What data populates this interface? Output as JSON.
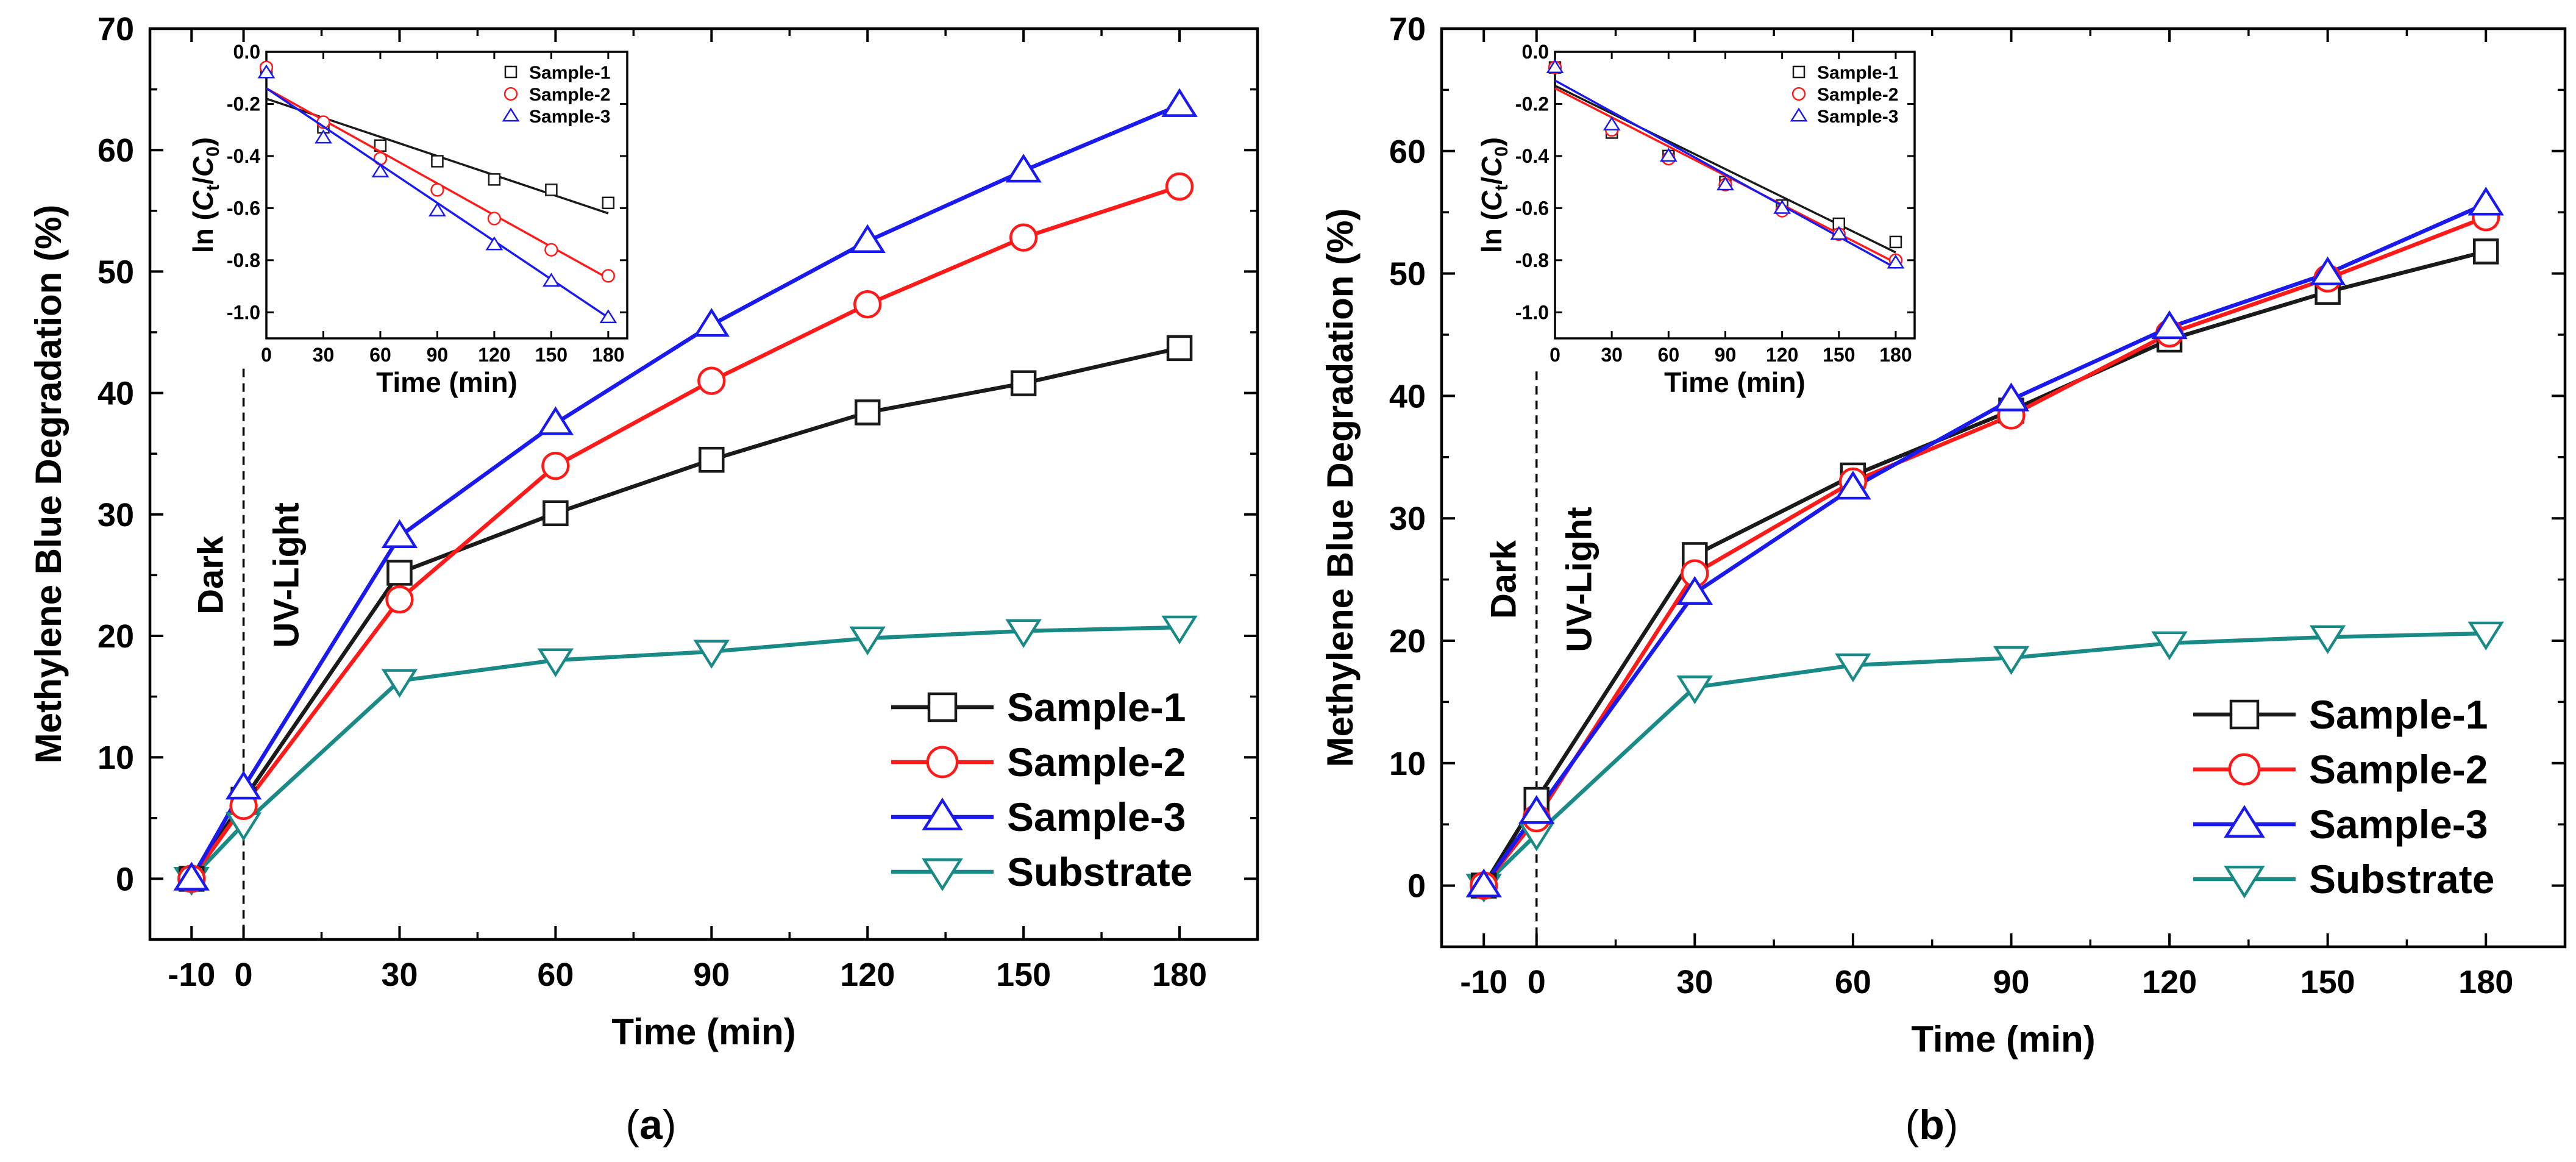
{
  "figure": {
    "captions": [
      "a",
      "b"
    ],
    "colors": {
      "sample1": "#1a1a1a",
      "sample2": "#ff1a1a",
      "sample3": "#1a1aee",
      "substrate": "#1a8a86",
      "axis": "#000000"
    },
    "markers": {
      "sample1": "square",
      "sample2": "circle",
      "sample3": "triangle-up",
      "substrate": "triangle-down"
    }
  },
  "chart_data": [
    {
      "panel": "a",
      "type": "line",
      "xlabel": "Time (min)",
      "ylabel": "Methylene Blue Degradation (%)",
      "xlim": [
        -18,
        195
      ],
      "ylim": [
        -5,
        70
      ],
      "xticks": [
        -10,
        0,
        30,
        60,
        90,
        120,
        150,
        180
      ],
      "xtick_labels": [
        "-10",
        "0",
        "30",
        "60",
        "90",
        "120",
        "150",
        "180"
      ],
      "yticks": [
        0,
        10,
        20,
        30,
        40,
        50,
        60,
        70
      ],
      "ytick_labels": [
        "0",
        "10",
        "20",
        "30",
        "40",
        "50",
        "60",
        "70"
      ],
      "x": [
        -10,
        0,
        30,
        60,
        90,
        120,
        150,
        180
      ],
      "series": [
        {
          "key": "sample1",
          "name": "Sample-1",
          "values": [
            0,
            6.5,
            25.2,
            30.1,
            34.5,
            38.4,
            40.8,
            43.7
          ]
        },
        {
          "key": "sample2",
          "name": "Sample-2",
          "values": [
            0,
            6.0,
            23.0,
            34.0,
            41.0,
            47.3,
            52.8,
            57.0
          ]
        },
        {
          "key": "sample3",
          "name": "Sample-3",
          "values": [
            0,
            7.5,
            28.2,
            37.5,
            45.6,
            52.5,
            58.3,
            63.7
          ]
        },
        {
          "key": "substrate",
          "name": "Substrate",
          "values": [
            0,
            4.5,
            16.3,
            18.0,
            18.7,
            19.8,
            20.4,
            20.7
          ]
        }
      ],
      "annotations": {
        "dark": "Dark",
        "light": "UV-Light",
        "divider_x": 0
      },
      "legend": "bottom-right",
      "inset": {
        "xlabel": "Time (min)",
        "ylabel_prefix": "ln (",
        "ylabel_c": "C",
        "ylabel_t": "t",
        "ylabel_slash": "/",
        "ylabel_0": "0",
        "ylabel_suffix": ")",
        "xlim": [
          0,
          190
        ],
        "ylim": [
          -1.1,
          0.0
        ],
        "xticks": [
          0,
          30,
          60,
          90,
          120,
          150,
          180
        ],
        "xtick_labels": [
          "0",
          "30",
          "60",
          "90",
          "120",
          "150",
          "180"
        ],
        "yticks": [
          0.0,
          -0.2,
          -0.4,
          -0.6,
          -0.8,
          -1.0
        ],
        "ytick_labels": [
          "0.0",
          "-0.2",
          "-0.4",
          "-0.6",
          "-0.8",
          "-1.0"
        ],
        "x": [
          0,
          30,
          60,
          90,
          120,
          150,
          180
        ],
        "legend": "top-right",
        "series": [
          {
            "key": "sample1",
            "name": "Sample-1",
            "values": [
              -0.07,
              -0.29,
              -0.36,
              -0.42,
              -0.49,
              -0.53,
              -0.58
            ],
            "fit": [
              -0.18,
              -0.62
            ]
          },
          {
            "key": "sample2",
            "name": "Sample-2",
            "values": [
              -0.06,
              -0.27,
              -0.41,
              -0.53,
              -0.64,
              -0.76,
              -0.86
            ],
            "fit": [
              -0.14,
              -0.87
            ]
          },
          {
            "key": "sample3",
            "name": "Sample-3",
            "values": [
              -0.08,
              -0.33,
              -0.46,
              -0.61,
              -0.74,
              -0.88,
              -1.02
            ],
            "fit": [
              -0.14,
              -1.02
            ]
          }
        ]
      }
    },
    {
      "panel": "b",
      "type": "line",
      "xlabel": "Time (min)",
      "ylabel": "Methylene Blue Degradation (%)",
      "xlim": [
        -18,
        195
      ],
      "ylim": [
        -5,
        70
      ],
      "xticks": [
        -10,
        0,
        30,
        60,
        90,
        120,
        150,
        180
      ],
      "xtick_labels": [
        "-10",
        "0",
        "30",
        "60",
        "90",
        "120",
        "150",
        "180"
      ],
      "yticks": [
        0,
        10,
        20,
        30,
        40,
        50,
        60,
        70
      ],
      "ytick_labels": [
        "0",
        "10",
        "20",
        "30",
        "40",
        "50",
        "60",
        "70"
      ],
      "x": [
        -10,
        0,
        30,
        60,
        90,
        120,
        150,
        180
      ],
      "series": [
        {
          "key": "sample1",
          "name": "Sample-1",
          "values": [
            0,
            7.0,
            27.0,
            33.5,
            38.8,
            44.6,
            48.5,
            51.8
          ]
        },
        {
          "key": "sample2",
          "name": "Sample-2",
          "values": [
            0,
            5.5,
            25.5,
            33.0,
            38.4,
            45.1,
            49.6,
            54.6
          ]
        },
        {
          "key": "sample3",
          "name": "Sample-3",
          "values": [
            0,
            6.0,
            23.9,
            32.5,
            39.7,
            45.6,
            50.0,
            55.7
          ]
        },
        {
          "key": "substrate",
          "name": "Substrate",
          "values": [
            0,
            4.2,
            16.2,
            18.0,
            18.6,
            19.8,
            20.3,
            20.6
          ]
        }
      ],
      "annotations": {
        "dark": "Dark",
        "light": "UV-Light",
        "divider_x": 0
      },
      "legend": "bottom-right",
      "inset": {
        "xlabel": "Time (min)",
        "ylabel_prefix": "ln (",
        "ylabel_c": "C",
        "ylabel_t": "t",
        "ylabel_slash": "/",
        "ylabel_0": "0",
        "ylabel_suffix": ")",
        "xlim": [
          0,
          190
        ],
        "ylim": [
          -1.1,
          0.0
        ],
        "xticks": [
          0,
          30,
          60,
          90,
          120,
          150,
          180
        ],
        "xtick_labels": [
          "0",
          "30",
          "60",
          "90",
          "120",
          "150",
          "180"
        ],
        "yticks": [
          0.0,
          -0.2,
          -0.4,
          -0.6,
          -0.8,
          -1.0
        ],
        "ytick_labels": [
          "0.0",
          "-0.2",
          "-0.4",
          "-0.6",
          "-0.8",
          "-1.0"
        ],
        "x": [
          0,
          30,
          60,
          90,
          120,
          150,
          180
        ],
        "legend": "top-right",
        "series": [
          {
            "key": "sample1",
            "name": "Sample-1",
            "values": [
              -0.06,
              -0.31,
              -0.4,
              -0.5,
              -0.59,
              -0.66,
              -0.73
            ],
            "fit": [
              -0.13,
              -0.77
            ]
          },
          {
            "key": "sample2",
            "name": "Sample-2",
            "values": [
              -0.06,
              -0.3,
              -0.41,
              -0.51,
              -0.61,
              -0.7,
              -0.8
            ],
            "fit": [
              -0.14,
              -0.81
            ]
          },
          {
            "key": "sample3",
            "name": "Sample-3",
            "values": [
              -0.06,
              -0.28,
              -0.4,
              -0.51,
              -0.6,
              -0.7,
              -0.81
            ],
            "fit": [
              -0.11,
              -0.83
            ]
          }
        ]
      }
    }
  ]
}
